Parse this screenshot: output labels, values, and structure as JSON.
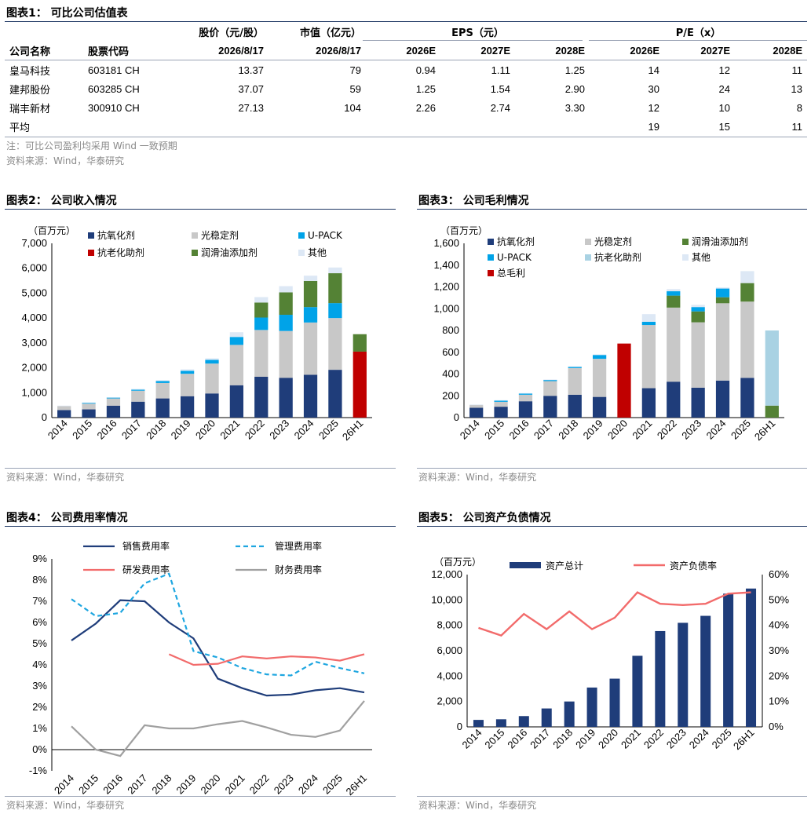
{
  "table": {
    "title": "图表1：  可比公司估值表",
    "header1": [
      "股价（元/股）",
      "市值（亿元）",
      "EPS（元）",
      "P/E（x）"
    ],
    "header2": [
      "公司名称",
      "股票代码",
      "2026/8/17",
      "2026/8/17",
      "2026E",
      "2027E",
      "2028E",
      "2026E",
      "2027E",
      "2028E"
    ],
    "rows": [
      [
        "皇马科技",
        "603181 CH",
        "13.37",
        "79",
        "0.94",
        "1.11",
        "1.25",
        "14",
        "12",
        "11"
      ],
      [
        "建邦股份",
        "603285 CH",
        "37.07",
        "59",
        "1.25",
        "1.54",
        "2.90",
        "30",
        "24",
        "13"
      ],
      [
        "瑞丰新材",
        "300910 CH",
        "27.13",
        "104",
        "2.26",
        "2.74",
        "3.30",
        "12",
        "10",
        "8"
      ],
      [
        "平均",
        "",
        "",
        "",
        "",
        "",
        "",
        "19",
        "15",
        "11"
      ]
    ],
    "note": "注：可比公司盈利均采用 Wind 一致预期",
    "source": "资料来源：Wind，华泰研究"
  },
  "chart_data": [
    {
      "id": "fig2",
      "title": "图表2：  公司收入情况",
      "type": "bar",
      "stacked": true,
      "unit_label": "（百万元）",
      "categories": [
        "2014",
        "2015",
        "2016",
        "2017",
        "2018",
        "2019",
        "2020",
        "2021",
        "2022",
        "2023",
        "2024",
        "2025",
        "26H1"
      ],
      "ylim": [
        0,
        7000
      ],
      "yticks": [
        "0",
        "1,000",
        "2,000",
        "3,000",
        "4,000",
        "5,000",
        "6,000",
        "7,000"
      ],
      "series": [
        {
          "name": "抗氧化剂",
          "color": "#1f3d7a",
          "values": [
            300,
            330,
            480,
            640,
            770,
            860,
            970,
            1300,
            1640,
            1600,
            1720,
            1920,
            0
          ]
        },
        {
          "name": "光稳定剂",
          "color": "#c8c8c8",
          "values": [
            160,
            230,
            290,
            440,
            620,
            900,
            1200,
            1620,
            1880,
            1880,
            2100,
            2080,
            0
          ]
        },
        {
          "name": "U-PACK",
          "color": "#00a3e8",
          "values": [
            0,
            30,
            30,
            40,
            80,
            120,
            150,
            320,
            500,
            650,
            620,
            600,
            0
          ]
        },
        {
          "name": "抗老化助剂",
          "color": "#c00000",
          "values": [
            0,
            0,
            0,
            0,
            0,
            0,
            0,
            0,
            0,
            0,
            0,
            0,
            2650
          ]
        },
        {
          "name": "润滑油添加剂",
          "color": "#548235",
          "values": [
            0,
            0,
            0,
            0,
            0,
            0,
            0,
            0,
            600,
            900,
            1050,
            1200,
            700
          ]
        },
        {
          "name": "其他",
          "color": "#dde8f5",
          "values": [
            20,
            20,
            20,
            30,
            30,
            60,
            60,
            190,
            220,
            250,
            210,
            230,
            0
          ]
        }
      ],
      "source": "资料来源：Wind，华泰研究"
    },
    {
      "id": "fig3",
      "title": "图表3：  公司毛利情况",
      "type": "bar",
      "stacked": true,
      "unit_label": "（百万元）",
      "categories": [
        "2014",
        "2015",
        "2016",
        "2017",
        "2018",
        "2019",
        "2020",
        "2021",
        "2022",
        "2023",
        "2024",
        "2025",
        "26H1"
      ],
      "ylim": [
        0,
        1600
      ],
      "yticks": [
        "0",
        "200",
        "400",
        "600",
        "800",
        "1,000",
        "1,200",
        "1,400",
        "1,600"
      ],
      "series": [
        {
          "name": "抗氧化剂",
          "color": "#1f3d7a",
          "values": [
            90,
            100,
            150,
            200,
            210,
            190,
            0,
            270,
            330,
            275,
            340,
            365,
            0
          ]
        },
        {
          "name": "光稳定剂",
          "color": "#c8c8c8",
          "values": [
            25,
            45,
            60,
            135,
            245,
            350,
            0,
            580,
            680,
            600,
            710,
            700,
            0
          ]
        },
        {
          "name": "润滑油添加剂",
          "color": "#548235",
          "values": [
            0,
            0,
            0,
            0,
            0,
            0,
            0,
            0,
            110,
            100,
            55,
            170,
            110
          ]
        },
        {
          "name": "U-PACK",
          "color": "#00a3e8",
          "values": [
            0,
            10,
            10,
            10,
            10,
            35,
            0,
            30,
            40,
            40,
            80,
            0,
            0
          ]
        },
        {
          "name": "抗老化助剂",
          "color": "#a9d2e3",
          "values": [
            0,
            0,
            0,
            0,
            0,
            0,
            0,
            0,
            0,
            0,
            0,
            0,
            690
          ]
        },
        {
          "name": "其他",
          "color": "#dde8f5",
          "values": [
            5,
            5,
            5,
            5,
            5,
            5,
            0,
            70,
            20,
            20,
            10,
            110,
            0
          ]
        },
        {
          "name": "总毛利",
          "color": "#c00000",
          "values": [
            0,
            0,
            0,
            0,
            0,
            0,
            680,
            0,
            0,
            0,
            0,
            0,
            0
          ]
        }
      ],
      "source": "资料来源：Wind，华泰研究"
    },
    {
      "id": "fig4",
      "title": "图表4：  公司费用率情况",
      "type": "line",
      "categories": [
        "2014",
        "2015",
        "2016",
        "2017",
        "2018",
        "2019",
        "2020",
        "2021",
        "2022",
        "2023",
        "2024",
        "2025",
        "26H1"
      ],
      "ylim": [
        -1,
        9
      ],
      "yticks": [
        "-1%",
        "0%",
        "1%",
        "2%",
        "3%",
        "4%",
        "5%",
        "6%",
        "7%",
        "8%",
        "9%"
      ],
      "series": [
        {
          "name": "销售费用率",
          "color": "#1f3d7a",
          "dash": false,
          "values": [
            5.15,
            5.95,
            7.05,
            7.0,
            6.0,
            5.25,
            3.35,
            2.9,
            2.55,
            2.6,
            2.8,
            2.9,
            2.7
          ]
        },
        {
          "name": "管理费用率",
          "color": "#1ea6e0",
          "dash": true,
          "values": [
            7.1,
            6.3,
            6.45,
            7.85,
            8.3,
            4.65,
            4.35,
            3.85,
            3.55,
            3.5,
            4.15,
            3.85,
            3.6
          ]
        },
        {
          "name": "研发费用率",
          "color": "#f26b6b",
          "dash": false,
          "values": [
            null,
            null,
            null,
            null,
            4.5,
            4.0,
            4.05,
            4.4,
            4.3,
            4.4,
            4.35,
            4.2,
            4.5
          ]
        },
        {
          "name": "财务费用率",
          "color": "#a0a0a0",
          "dash": false,
          "values": [
            1.1,
            0.0,
            -0.3,
            1.15,
            1.0,
            1.0,
            1.2,
            1.35,
            1.05,
            0.7,
            0.6,
            0.9,
            2.3
          ]
        }
      ],
      "source": "资料来源：Wind，华泰研究"
    },
    {
      "id": "fig5",
      "title": "图表5：  公司资产负债情况",
      "type": "bar+line",
      "unit_label": "（百万元）",
      "categories": [
        "2014",
        "2015",
        "2016",
        "2017",
        "2018",
        "2019",
        "2020",
        "2021",
        "2022",
        "2023",
        "2024",
        "2025",
        "26H1"
      ],
      "ylim": [
        0,
        12000
      ],
      "y2lim": [
        0,
        60
      ],
      "yticks": [
        "0",
        "2,000",
        "4,000",
        "6,000",
        "8,000",
        "10,000",
        "12,000"
      ],
      "y2ticks": [
        "0%",
        "10%",
        "20%",
        "30%",
        "40%",
        "50%",
        "60%"
      ],
      "bar_series": {
        "name": "资产总计",
        "color": "#1f3d7a",
        "values": [
          550,
          600,
          850,
          1450,
          2000,
          3100,
          3800,
          5600,
          7550,
          8200,
          8750,
          10500,
          10900
        ]
      },
      "line_series": {
        "name": "资产负债率",
        "color": "#f26b6b",
        "values": [
          39,
          36,
          44.5,
          38.5,
          45.5,
          38.5,
          43,
          53,
          48.5,
          48,
          48.5,
          52.5,
          53
        ]
      },
      "source": "资料来源：Wind，华泰研究"
    }
  ]
}
